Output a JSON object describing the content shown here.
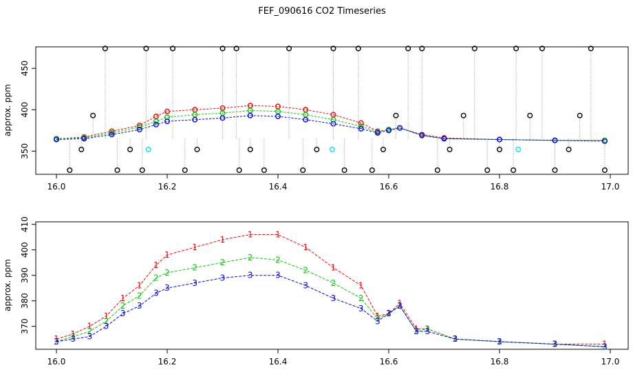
{
  "title": "FEF_090616  CO2 Timeseries",
  "colors": {
    "red": "#ff0000",
    "green": "#00cd00",
    "blue": "#0000ff",
    "black": "#000000",
    "cyan": "#00e5ee",
    "gray": "#888888"
  },
  "chart_data": [
    {
      "type": "scatter",
      "ylabel": "approx. ppm",
      "xlabel": "",
      "xlim": [
        16.0,
        17.0
      ],
      "ylim": [
        322,
        476
      ],
      "xticks": [
        "16.0",
        "16.2",
        "16.4",
        "16.6",
        "16.8",
        "17.0"
      ],
      "yticks": [
        "350",
        "400",
        "450"
      ],
      "grid": false,
      "series": [
        {
          "color": "red",
          "marker": "circle",
          "x": [
            16.0,
            16.05,
            16.1,
            16.15,
            16.18,
            16.2,
            16.25,
            16.3,
            16.35,
            16.4,
            16.45,
            16.5,
            16.55,
            16.58,
            16.6,
            16.62,
            16.66,
            16.7,
            16.8,
            16.9,
            16.99
          ],
          "y": [
            365,
            367,
            374,
            381,
            392,
            398,
            400,
            402,
            405,
            404,
            400,
            394,
            384,
            374,
            376,
            378,
            370,
            366,
            364,
            363,
            363
          ]
        },
        {
          "color": "green",
          "marker": "circle",
          "x": [
            16.0,
            16.05,
            16.1,
            16.15,
            16.18,
            16.2,
            16.25,
            16.3,
            16.35,
            16.4,
            16.45,
            16.5,
            16.55,
            16.58,
            16.6,
            16.62,
            16.66,
            16.7,
            16.8,
            16.9,
            16.99
          ],
          "y": [
            365,
            366,
            372,
            379,
            386,
            391,
            394,
            396,
            399,
            398,
            394,
            388,
            380,
            373,
            376,
            378,
            369,
            365,
            364,
            363,
            363
          ]
        },
        {
          "color": "blue",
          "marker": "circle",
          "x": [
            16.0,
            16.05,
            16.1,
            16.15,
            16.18,
            16.2,
            16.25,
            16.3,
            16.35,
            16.4,
            16.45,
            16.5,
            16.55,
            16.58,
            16.6,
            16.62,
            16.66,
            16.7,
            16.8,
            16.9,
            16.99
          ],
          "y": [
            364,
            365,
            370,
            376,
            382,
            386,
            388,
            390,
            393,
            392,
            388,
            383,
            377,
            372,
            375,
            378,
            369,
            365,
            364,
            363,
            362
          ]
        },
        {
          "color": "black",
          "marker": "circle",
          "x": [
            16.024,
            16.045,
            16.066,
            16.088,
            16.11,
            16.133,
            16.155,
            16.162,
            16.21,
            16.232,
            16.254,
            16.3,
            16.325,
            16.33,
            16.35,
            16.375,
            16.42,
            16.445,
            16.47,
            16.5,
            16.52,
            16.545,
            16.57,
            16.59,
            16.613,
            16.635,
            16.66,
            16.688,
            16.71,
            16.735,
            16.755,
            16.778,
            16.8,
            16.825,
            16.83,
            16.855,
            16.877,
            16.9,
            16.925,
            16.945,
            16.965,
            16.99
          ],
          "y": [
            327,
            352,
            393,
            474,
            327,
            352,
            327,
            474,
            474,
            327,
            352,
            474,
            474,
            327,
            352,
            327,
            474,
            327,
            352,
            474,
            327,
            474,
            327,
            352,
            393,
            474,
            474,
            327,
            352,
            393,
            474,
            327,
            352,
            327,
            474,
            393,
            474,
            327,
            352,
            393,
            474,
            327
          ]
        },
        {
          "color": "cyan",
          "marker": "circle",
          "x": [
            16.166,
            16.498,
            16.834
          ],
          "y": [
            352,
            352,
            352
          ]
        }
      ]
    },
    {
      "type": "line",
      "ylabel": "approx. ppm",
      "xlabel": "",
      "xlim": [
        16.0,
        17.0
      ],
      "ylim": [
        361,
        411
      ],
      "xticks": [
        "16.0",
        "16.2",
        "16.4",
        "16.6",
        "16.8",
        "17.0"
      ],
      "yticks": [
        "370",
        "380",
        "390",
        "400",
        "410"
      ],
      "grid": false,
      "series": [
        {
          "color": "red",
          "marker": "1",
          "x": [
            16.0,
            16.03,
            16.06,
            16.09,
            16.12,
            16.15,
            16.18,
            16.2,
            16.25,
            16.3,
            16.35,
            16.4,
            16.45,
            16.5,
            16.55,
            16.58,
            16.6,
            16.62,
            16.65,
            16.67,
            16.72,
            16.8,
            16.9,
            16.99
          ],
          "y": [
            365,
            367,
            370,
            374,
            381,
            386,
            394,
            398,
            401,
            404,
            406,
            406,
            401,
            393,
            386,
            374,
            375,
            379,
            369,
            369,
            365,
            364,
            363,
            363
          ]
        },
        {
          "color": "green",
          "marker": "2",
          "x": [
            16.0,
            16.03,
            16.06,
            16.09,
            16.12,
            16.15,
            16.18,
            16.2,
            16.25,
            16.3,
            16.35,
            16.4,
            16.45,
            16.5,
            16.55,
            16.58,
            16.6,
            16.62,
            16.65,
            16.67,
            16.72,
            16.8,
            16.9,
            16.99
          ],
          "y": [
            364,
            366,
            368,
            372,
            378,
            382,
            389,
            391,
            393,
            395,
            397,
            396,
            392,
            387,
            381,
            373,
            375,
            378,
            368,
            369,
            365,
            364,
            363,
            362
          ]
        },
        {
          "color": "blue",
          "marker": "3",
          "x": [
            16.0,
            16.03,
            16.06,
            16.09,
            16.12,
            16.15,
            16.18,
            16.2,
            16.25,
            16.3,
            16.35,
            16.4,
            16.45,
            16.5,
            16.55,
            16.58,
            16.6,
            16.62,
            16.65,
            16.67,
            16.72,
            16.8,
            16.9,
            16.99
          ],
          "y": [
            364,
            365,
            366,
            370,
            375,
            378,
            383,
            385,
            387,
            389,
            390,
            390,
            386,
            381,
            377,
            372,
            375,
            378,
            368,
            368,
            365,
            364,
            363,
            362
          ]
        }
      ]
    }
  ]
}
